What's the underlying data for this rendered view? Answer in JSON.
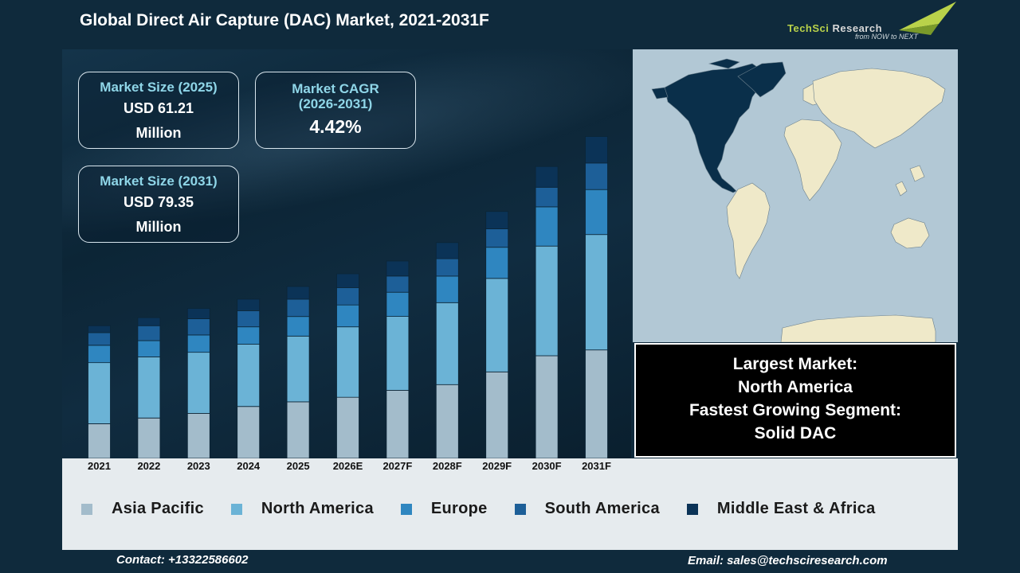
{
  "title": "Global Direct Air Capture (DAC) Market, 2021-2031F",
  "logo": {
    "name_part1": "TechSci",
    "name_part2": " Research",
    "tagline": "from NOW to NEXT"
  },
  "stats": {
    "size_2025_label": "Market Size (2025)",
    "size_2025_value": "USD 61.21",
    "size_2025_unit": "Million",
    "cagr_label_line1": "Market CAGR",
    "cagr_label_line2": "(2026-2031)",
    "cagr_value": "4.42%",
    "size_2031_label": "Market Size (2031)",
    "size_2031_value": "USD 79.35",
    "size_2031_unit": "Million"
  },
  "info": {
    "largest_label": "Largest Market:",
    "largest_value": "North America",
    "fastest_label": "Fastest Growing Segment:",
    "fastest_value": "Solid DAC"
  },
  "footer": {
    "contact": "Contact: +13322586602",
    "email": "Email: sales@techsciresearch.com"
  },
  "colors": {
    "asia_pacific": "#a3bccb",
    "north_america": "#6bb3d6",
    "europe": "#2f86c0",
    "south_america": "#1d5f98",
    "middle_east_africa": "#0b3357",
    "land": "#efe9c9",
    "north_america_land": "#0a2f4a",
    "ocean": "#b2c8d5"
  },
  "chart_data": {
    "type": "bar",
    "stacked": true,
    "categories": [
      "2021",
      "2022",
      "2023",
      "2024",
      "2025",
      "2026E",
      "2027F",
      "2028F",
      "2029F",
      "2030F",
      "2031F"
    ],
    "series": [
      {
        "name": "Asia Pacific",
        "values": [
          15,
          17.5,
          19.5,
          22.5,
          24.5,
          26.5,
          29.5,
          32,
          37.5,
          44.5,
          47
        ]
      },
      {
        "name": "North America",
        "values": [
          26.5,
          26.5,
          26.5,
          27,
          28.5,
          30.5,
          32,
          35.5,
          40.5,
          47.5,
          50
        ]
      },
      {
        "name": "Europe",
        "values": [
          7.5,
          7,
          7.5,
          7.5,
          8.5,
          9.5,
          10.5,
          11.5,
          13.5,
          17,
          19.5
        ]
      },
      {
        "name": "South America",
        "values": [
          5.5,
          6.5,
          7,
          7,
          7.5,
          7.5,
          7,
          7.5,
          8,
          8.5,
          11.5
        ]
      },
      {
        "name": "Middle East & Africa",
        "values": [
          3,
          3.5,
          4.5,
          5,
          5.5,
          6,
          6.5,
          7,
          7.5,
          9,
          11.5
        ]
      }
    ],
    "legend_position": "bottom",
    "grid": false
  }
}
